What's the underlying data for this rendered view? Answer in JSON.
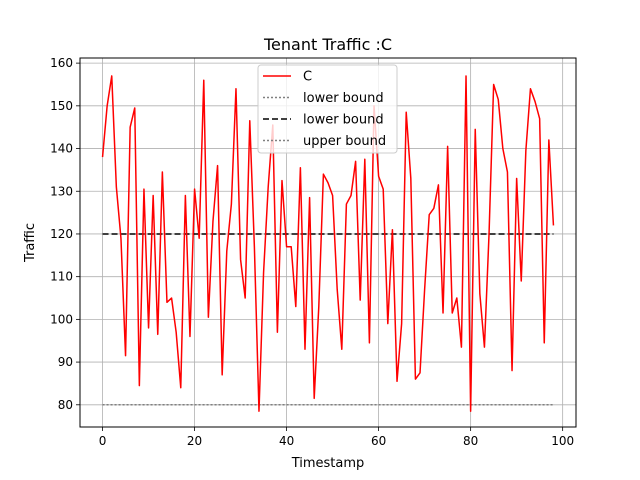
{
  "chart_data": {
    "type": "line",
    "title": "Tenant Traffic :C",
    "xlabel": "Timestamp",
    "ylabel": "Traffic",
    "xlim": [
      -4.9,
      102.9
    ],
    "ylim": [
      74.8,
      161.2
    ],
    "xticks": [
      0,
      20,
      40,
      60,
      80,
      100
    ],
    "yticks": [
      80,
      90,
      100,
      110,
      120,
      130,
      140,
      150,
      160
    ],
    "grid": true,
    "legend_position": "top-center",
    "series": [
      {
        "name": "C",
        "color": "#ff0000",
        "style": "solid",
        "x": [
          0,
          1,
          2,
          3,
          4,
          5,
          6,
          7,
          8,
          9,
          10,
          11,
          12,
          13,
          14,
          15,
          16,
          17,
          18,
          19,
          20,
          21,
          22,
          23,
          24,
          25,
          26,
          27,
          28,
          29,
          30,
          31,
          32,
          33,
          34,
          35,
          36,
          37,
          38,
          39,
          40,
          41,
          42,
          43,
          44,
          45,
          46,
          47,
          48,
          49,
          50,
          51,
          52,
          53,
          54,
          55,
          56,
          57,
          58,
          59,
          60,
          61,
          62,
          63,
          64,
          65,
          66,
          67,
          68,
          69,
          70,
          71,
          72,
          73,
          74,
          75,
          76,
          77,
          78,
          79,
          80,
          81,
          82,
          83,
          84,
          85,
          86,
          87,
          88,
          89,
          90,
          91,
          92,
          93,
          94,
          95,
          96,
          97,
          98
        ],
        "values": [
          138,
          150,
          157,
          131,
          119,
          91.5,
          145,
          149.5,
          84.5,
          130.5,
          98,
          129,
          96.5,
          134.5,
          104,
          105,
          97,
          84,
          129,
          96,
          130.5,
          119,
          156,
          100.5,
          123,
          136,
          87,
          116,
          127,
          154,
          114,
          105,
          146.5,
          117,
          78.5,
          111,
          131,
          145.5,
          97,
          132.5,
          117,
          117,
          103,
          135.5,
          93,
          128.5,
          81.5,
          103,
          134,
          132,
          129,
          107,
          93,
          127,
          129,
          137,
          104.5,
          137.5,
          94.5,
          150,
          133.5,
          130.5,
          99,
          121,
          85.5,
          99,
          148.5,
          133,
          86,
          87.5,
          107,
          124.5,
          126,
          131.5,
          101.5,
          140.5,
          101.5,
          105,
          93.5,
          157,
          78.5,
          144.5,
          106,
          93.5,
          120,
          155,
          151.5,
          140,
          134.5,
          88,
          133,
          109,
          139.5,
          154,
          151,
          147,
          94.5,
          142,
          122
        ]
      },
      {
        "name": "lower bound",
        "color": "#808080",
        "style": "dotted",
        "x": [
          0,
          98
        ],
        "values": [
          80,
          80
        ]
      },
      {
        "name": "lower bound",
        "color": "#000000",
        "style": "dashed",
        "x": [
          0,
          98
        ],
        "values": [
          120,
          120
        ]
      },
      {
        "name": "upper bound",
        "color": "#808080",
        "style": "dotted",
        "x": [
          0,
          98
        ],
        "values": [
          80,
          80
        ]
      }
    ]
  }
}
